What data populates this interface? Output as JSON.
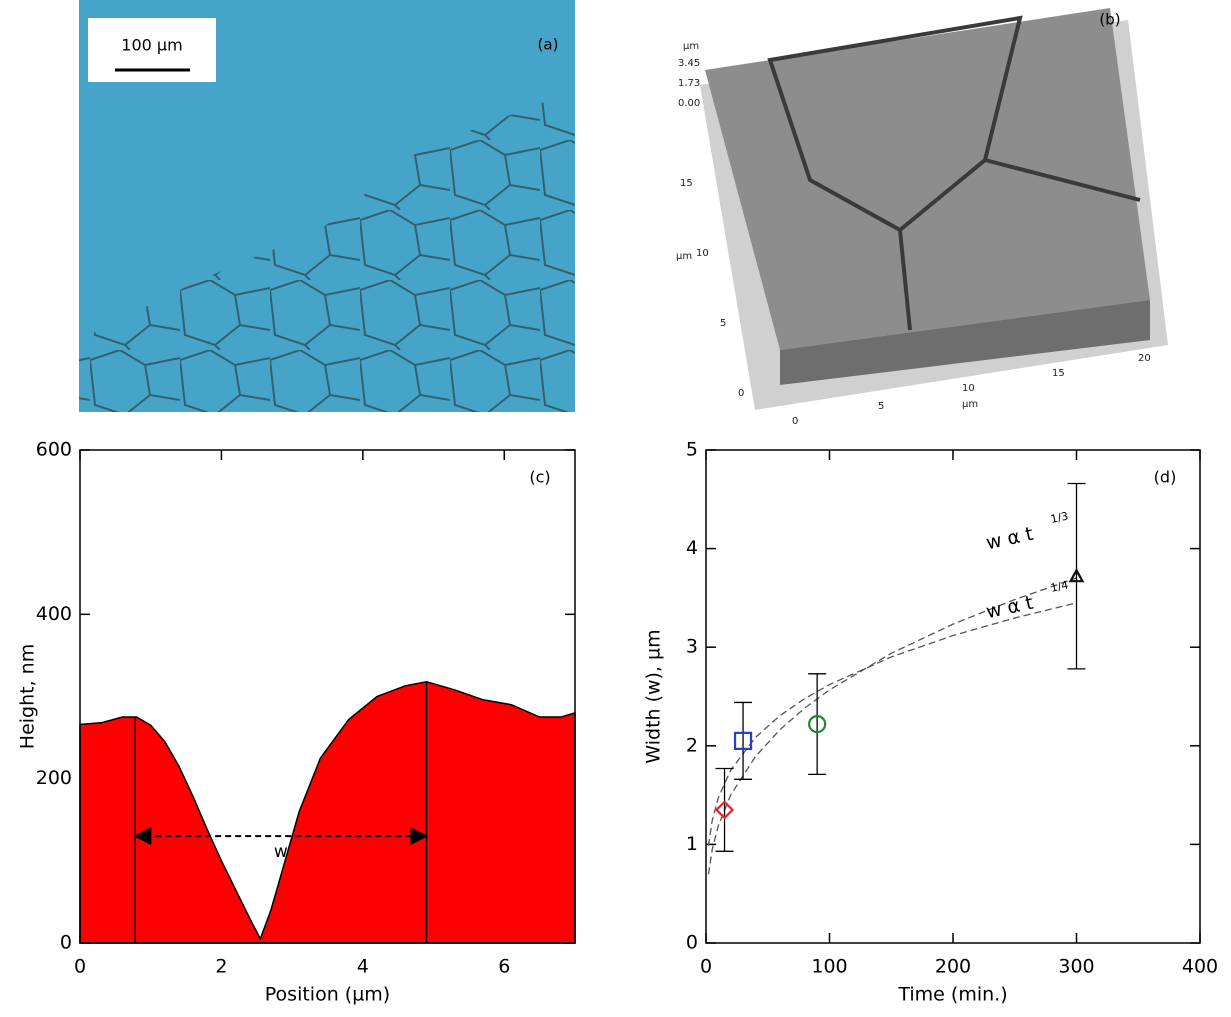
{
  "images": [
    {
      "label": "(a)",
      "scale_bar": "100 µm"
    },
    {
      "label": "(b)",
      "z_unit": "µm",
      "z_ticks": [
        "3.45",
        "1.73",
        "0.00"
      ],
      "y_unit": "µm",
      "y_ticks": [
        "15",
        "10",
        "5",
        "0"
      ],
      "x_unit": "µm",
      "x_ticks": [
        "0",
        "5",
        "10",
        "15",
        "20"
      ]
    }
  ],
  "chart_data": [
    {
      "type": "area",
      "panel_label": "(c)",
      "x_label": "Position (µm)",
      "y_label": "Height, nm",
      "x": [
        0,
        0.3,
        0.6,
        0.8,
        1.0,
        1.2,
        1.4,
        1.6,
        1.8,
        2.0,
        2.2,
        2.4,
        2.55,
        2.7,
        2.9,
        3.1,
        3.4,
        3.8,
        4.2,
        4.6,
        4.9,
        5.3,
        5.7,
        6.1,
        6.5,
        6.8,
        7.0
      ],
      "values": [
        266,
        268,
        275,
        275,
        265,
        245,
        215,
        178,
        138,
        100,
        65,
        30,
        5,
        40,
        100,
        160,
        225,
        272,
        300,
        313,
        318,
        308,
        296,
        290,
        275,
        275,
        280
      ],
      "color": "#ff0000",
      "annotations": [
        {
          "text": "w",
          "x": [
            0.78,
            4.9
          ],
          "y": 130
        }
      ],
      "xlim": [
        0,
        7
      ],
      "xticks": [
        0,
        2,
        4,
        6
      ],
      "ylim": [
        0,
        600
      ],
      "yticks": [
        0,
        200,
        400,
        600
      ]
    },
    {
      "type": "scatter",
      "panel_label": "(d)",
      "x_label": "Time (min.)",
      "y_label": "Width (w), µm",
      "x": [
        15,
        30,
        90,
        300
      ],
      "values": [
        1.35,
        2.05,
        2.22,
        3.72
      ],
      "errors": [
        0.42,
        0.39,
        0.51,
        0.94
      ],
      "colors": [
        "#e0262b",
        "#1f3fd1",
        "#1a8a2a",
        "#111111"
      ],
      "markers": [
        "diamond",
        "square",
        "circle",
        "triangle"
      ],
      "fits": [
        {
          "name": "w α t",
          "superscript": "1/3",
          "color": "#555555",
          "x": [
            2,
            5,
            10,
            20,
            40,
            60,
            80,
            100,
            150,
            200,
            250,
            300
          ],
          "values": [
            0.697,
            0.946,
            1.191,
            1.501,
            1.891,
            2.165,
            2.383,
            2.567,
            2.938,
            3.234,
            3.483,
            3.702
          ]
        },
        {
          "name": "w α t",
          "superscript": "1/4",
          "color": "#555555",
          "x": [
            2,
            5,
            10,
            20,
            40,
            60,
            80,
            100,
            150,
            200,
            250,
            300
          ],
          "values": [
            0.986,
            1.24,
            1.474,
            1.753,
            2.085,
            2.307,
            2.479,
            2.621,
            2.901,
            3.118,
            3.296,
            3.45
          ]
        }
      ],
      "xlim": [
        0,
        400
      ],
      "xticks": [
        0,
        100,
        200,
        300,
        400
      ],
      "ylim": [
        0,
        5
      ],
      "yticks": [
        0,
        1,
        2,
        3,
        4,
        5
      ]
    }
  ]
}
